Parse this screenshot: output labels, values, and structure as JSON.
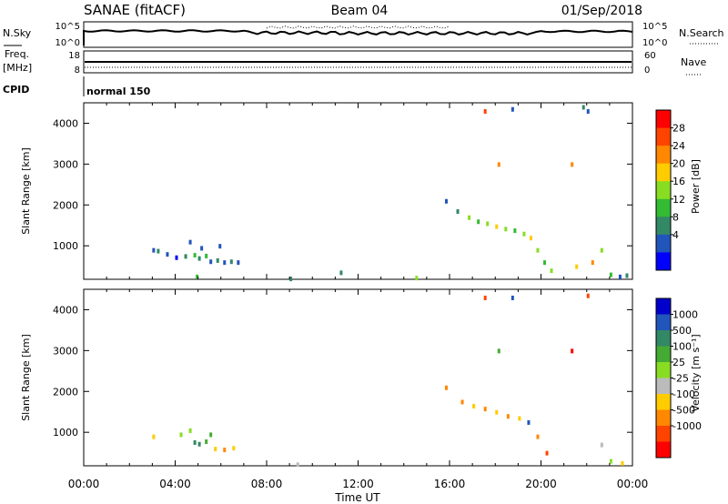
{
  "header": {
    "title": "SANAE (fitACF)",
    "beam": "Beam 04",
    "date": "01/Sep/2018"
  },
  "noise_panel": {
    "left_label": "N.Sky",
    "right_label": "N.Search",
    "left_ticks": [
      "10^5",
      "10^0"
    ],
    "right_ticks": [
      "10^5",
      "10^0"
    ]
  },
  "freq_panel": {
    "left_label_1": "Freq.",
    "left_label_2": "[MHz]",
    "left_ticks": [
      "18",
      "8"
    ],
    "right_label": "Nave",
    "right_ticks": [
      "60",
      "0"
    ]
  },
  "cpid": {
    "label": "CPID",
    "mode": "normal 150"
  },
  "x_axis": {
    "title": "Time UT",
    "ticks": [
      "00:00",
      "04:00",
      "08:00",
      "12:00",
      "16:00",
      "20:00",
      "00:00"
    ]
  },
  "power_panel": {
    "ylabel": "Slant Range [km]",
    "yticks": [
      "4000",
      "3000",
      "2000",
      "1000"
    ],
    "cbar_label": "Power [dB]",
    "cbar_ticks": [
      "28",
      "24",
      "20",
      "16",
      "12",
      "8",
      "4"
    ],
    "cbar_colors": [
      "#ff0000",
      "#ff4400",
      "#ff8800",
      "#ffcc00",
      "#88dd22",
      "#33bb33",
      "#338866",
      "#2255bb",
      "#0000ff"
    ]
  },
  "velocity_panel": {
    "ylabel": "Slant Range [km]",
    "yticks": [
      "4000",
      "3000",
      "2000",
      "1000"
    ],
    "cbar_label": "Velocity [m s⁻¹]",
    "cbar_ticks": [
      "1000",
      "500",
      "100",
      "25",
      "-25",
      "-100",
      "-500",
      "-1000"
    ],
    "cbar_colors": [
      "#0000cc",
      "#2255bb",
      "#338866",
      "#44aa33",
      "#88dd22",
      "#bbbbbb",
      "#ffcc00",
      "#ff8800",
      "#ff4400",
      "#ff0000"
    ]
  },
  "chart_data": {
    "type": "scatter",
    "x_range_hours": [
      0,
      24
    ],
    "y_range_km": [
      180,
      4500
    ],
    "power_scatter": [
      {
        "t": 3.0,
        "r": 900,
        "c": "#2255bb"
      },
      {
        "t": 3.2,
        "r": 880,
        "c": "#338866"
      },
      {
        "t": 3.6,
        "r": 800,
        "c": "#2255bb"
      },
      {
        "t": 4.0,
        "r": 720,
        "c": "#0000ff"
      },
      {
        "t": 4.4,
        "r": 750,
        "c": "#338866"
      },
      {
        "t": 4.6,
        "r": 1100,
        "c": "#2255bb"
      },
      {
        "t": 4.8,
        "r": 780,
        "c": "#33bb33"
      },
      {
        "t": 5.0,
        "r": 700,
        "c": "#338866"
      },
      {
        "t": 5.1,
        "r": 950,
        "c": "#2255bb"
      },
      {
        "t": 5.3,
        "r": 760,
        "c": "#33bb33"
      },
      {
        "t": 5.5,
        "r": 620,
        "c": "#2255bb"
      },
      {
        "t": 5.8,
        "r": 650,
        "c": "#338866"
      },
      {
        "t": 6.1,
        "r": 600,
        "c": "#2255bb"
      },
      {
        "t": 6.4,
        "r": 620,
        "c": "#338866"
      },
      {
        "t": 6.7,
        "r": 600,
        "c": "#2255bb"
      },
      {
        "t": 5.9,
        "r": 1000,
        "c": "#2255bb"
      },
      {
        "t": 4.9,
        "r": 250,
        "c": "#33bb33"
      },
      {
        "t": 9.0,
        "r": 200,
        "c": "#338866"
      },
      {
        "t": 11.2,
        "r": 350,
        "c": "#338866"
      },
      {
        "t": 14.5,
        "r": 220,
        "c": "#88dd22"
      },
      {
        "t": 15.8,
        "r": 2100,
        "c": "#2255bb"
      },
      {
        "t": 16.3,
        "r": 1850,
        "c": "#338866"
      },
      {
        "t": 16.8,
        "r": 1700,
        "c": "#88dd22"
      },
      {
        "t": 17.2,
        "r": 1600,
        "c": "#33bb33"
      },
      {
        "t": 17.6,
        "r": 1550,
        "c": "#88dd22"
      },
      {
        "t": 18.0,
        "r": 1480,
        "c": "#ffcc00"
      },
      {
        "t": 18.4,
        "r": 1420,
        "c": "#88dd22"
      },
      {
        "t": 18.8,
        "r": 1380,
        "c": "#33bb33"
      },
      {
        "t": 19.2,
        "r": 1300,
        "c": "#88dd22"
      },
      {
        "t": 19.5,
        "r": 1200,
        "c": "#ffcc00"
      },
      {
        "t": 19.8,
        "r": 900,
        "c": "#88dd22"
      },
      {
        "t": 20.1,
        "r": 600,
        "c": "#33bb33"
      },
      {
        "t": 20.4,
        "r": 400,
        "c": "#88dd22"
      },
      {
        "t": 18.1,
        "r": 3000,
        "c": "#ff8800"
      },
      {
        "t": 21.3,
        "r": 3000,
        "c": "#ff8800"
      },
      {
        "t": 17.5,
        "r": 4300,
        "c": "#ff4400"
      },
      {
        "t": 18.7,
        "r": 4350,
        "c": "#2255bb"
      },
      {
        "t": 21.8,
        "r": 4400,
        "c": "#338866"
      },
      {
        "t": 22.0,
        "r": 4300,
        "c": "#2255bb"
      },
      {
        "t": 21.5,
        "r": 500,
        "c": "#ffcc00"
      },
      {
        "t": 22.2,
        "r": 600,
        "c": "#ff8800"
      },
      {
        "t": 22.6,
        "r": 900,
        "c": "#88dd22"
      },
      {
        "t": 23.0,
        "r": 300,
        "c": "#33bb33"
      },
      {
        "t": 23.4,
        "r": 250,
        "c": "#2255bb"
      },
      {
        "t": 23.7,
        "r": 280,
        "c": "#338866"
      }
    ],
    "velocity_scatter": [
      {
        "t": 3.0,
        "r": 900,
        "c": "#ffcc00"
      },
      {
        "t": 4.2,
        "r": 950,
        "c": "#88dd22"
      },
      {
        "t": 4.6,
        "r": 1050,
        "c": "#88dd22"
      },
      {
        "t": 4.8,
        "r": 760,
        "c": "#338866"
      },
      {
        "t": 5.0,
        "r": 720,
        "c": "#338866"
      },
      {
        "t": 5.3,
        "r": 780,
        "c": "#44aa33"
      },
      {
        "t": 5.5,
        "r": 950,
        "c": "#44aa33"
      },
      {
        "t": 5.7,
        "r": 600,
        "c": "#ffcc00"
      },
      {
        "t": 6.1,
        "r": 580,
        "c": "#ff8800"
      },
      {
        "t": 6.5,
        "r": 620,
        "c": "#ffcc00"
      },
      {
        "t": 9.3,
        "r": 220,
        "c": "#bbbbbb"
      },
      {
        "t": 15.8,
        "r": 2100,
        "c": "#ff8800"
      },
      {
        "t": 16.5,
        "r": 1750,
        "c": "#ff8800"
      },
      {
        "t": 17.0,
        "r": 1650,
        "c": "#ffcc00"
      },
      {
        "t": 17.5,
        "r": 1580,
        "c": "#ff8800"
      },
      {
        "t": 18.0,
        "r": 1500,
        "c": "#ffcc00"
      },
      {
        "t": 18.5,
        "r": 1400,
        "c": "#ff8800"
      },
      {
        "t": 19.0,
        "r": 1350,
        "c": "#ffcc00"
      },
      {
        "t": 19.4,
        "r": 1250,
        "c": "#2255bb"
      },
      {
        "t": 19.8,
        "r": 900,
        "c": "#ff8800"
      },
      {
        "t": 20.2,
        "r": 500,
        "c": "#ff4400"
      },
      {
        "t": 18.1,
        "r": 3000,
        "c": "#44aa33"
      },
      {
        "t": 21.3,
        "r": 3000,
        "c": "#ff0000"
      },
      {
        "t": 17.5,
        "r": 4300,
        "c": "#ff4400"
      },
      {
        "t": 18.7,
        "r": 4300,
        "c": "#2255bb"
      },
      {
        "t": 22.0,
        "r": 4350,
        "c": "#ff4400"
      },
      {
        "t": 22.6,
        "r": 700,
        "c": "#bbbbbb"
      },
      {
        "t": 23.0,
        "r": 300,
        "c": "#88dd22"
      },
      {
        "t": 23.5,
        "r": 250,
        "c": "#ffcc00"
      }
    ]
  }
}
